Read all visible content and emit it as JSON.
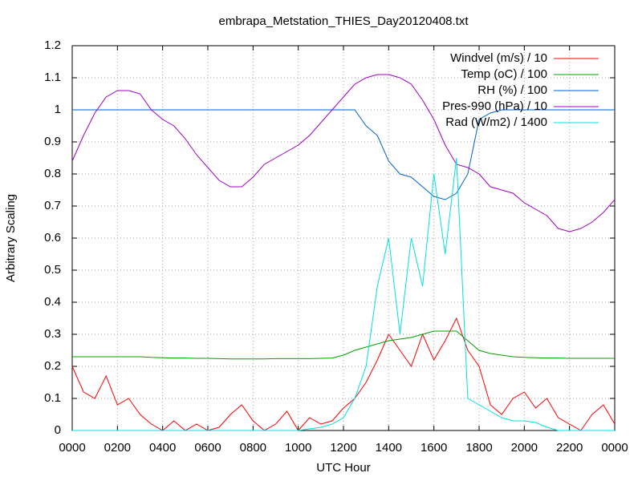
{
  "chart_data": {
    "type": "line",
    "title": "embrapa_Metstation_THIES_Day20120408.txt",
    "x_label": "UTC Hour",
    "y_label": "Arbitrary Scaling",
    "x": [
      0,
      0.5,
      1,
      1.5,
      2,
      2.5,
      3,
      3.5,
      4,
      4.5,
      5,
      5.5,
      6,
      6.5,
      7,
      7.5,
      8,
      8.5,
      9,
      9.5,
      10,
      10.5,
      11,
      11.5,
      12,
      12.5,
      13,
      13.5,
      14,
      14.5,
      15,
      15.5,
      16,
      16.5,
      17,
      17.5,
      18,
      18.5,
      19,
      19.5,
      20,
      20.5,
      21,
      21.5,
      22,
      22.5,
      23,
      23.5,
      24
    ],
    "series": [
      {
        "name": "Windvel (m/s) / 10",
        "color": "#ff0000",
        "values": [
          0.2,
          0.12,
          0.1,
          0.17,
          0.08,
          0.1,
          0.05,
          0.02,
          0,
          0.03,
          0,
          0.02,
          0,
          0.01,
          0.05,
          0.08,
          0.03,
          0,
          0.02,
          0.06,
          0,
          0.04,
          0.02,
          0.03,
          0.07,
          0.1,
          0.15,
          0.22,
          0.3,
          0.25,
          0.2,
          0.3,
          0.22,
          0.28,
          0.35,
          0.25,
          0.2,
          0.08,
          0.05,
          0.1,
          0.12,
          0.07,
          0.1,
          0.04,
          0.02,
          0,
          0.05,
          0.08,
          0.02
        ]
      },
      {
        "name": "Temp (oC) / 100",
        "color": "#00a000",
        "values": [
          0.23,
          0.23,
          0.23,
          0.23,
          0.23,
          0.23,
          0.23,
          0.228,
          0.227,
          0.226,
          0.226,
          0.225,
          0.225,
          0.224,
          0.223,
          0.223,
          0.223,
          0.223,
          0.224,
          0.224,
          0.224,
          0.224,
          0.225,
          0.226,
          0.235,
          0.25,
          0.26,
          0.27,
          0.28,
          0.285,
          0.29,
          0.3,
          0.31,
          0.31,
          0.31,
          0.28,
          0.25,
          0.24,
          0.235,
          0.23,
          0.228,
          0.227,
          0.226,
          0.226,
          0.225,
          0.225,
          0.225,
          0.225,
          0.225
        ]
      },
      {
        "name": "RH (%) / 100",
        "color": "#0060d0",
        "values": [
          1,
          1,
          1,
          1,
          1,
          1,
          1,
          1,
          1,
          1,
          1,
          1,
          1,
          1,
          1,
          1,
          1,
          1,
          1,
          1,
          1,
          1,
          1,
          1,
          1,
          1,
          0.95,
          0.92,
          0.84,
          0.8,
          0.79,
          0.76,
          0.73,
          0.72,
          0.74,
          0.8,
          0.97,
          0.99,
          1,
          1,
          1,
          1,
          1,
          1,
          1,
          1,
          1,
          1,
          1
        ]
      },
      {
        "name": "Pres-990 (hPa) / 10",
        "color": "#a000c0",
        "values": [
          0.84,
          0.92,
          0.99,
          1.04,
          1.06,
          1.06,
          1.05,
          1.0,
          0.97,
          0.95,
          0.91,
          0.86,
          0.82,
          0.78,
          0.76,
          0.76,
          0.79,
          0.83,
          0.85,
          0.87,
          0.89,
          0.92,
          0.96,
          1.0,
          1.04,
          1.08,
          1.1,
          1.11,
          1.11,
          1.1,
          1.08,
          1.03,
          0.97,
          0.89,
          0.83,
          0.82,
          0.8,
          0.76,
          0.75,
          0.74,
          0.71,
          0.69,
          0.67,
          0.63,
          0.62,
          0.63,
          0.65,
          0.68,
          0.72
        ]
      },
      {
        "name": "Rad (W/m2) / 1400",
        "color": "#00e0e0",
        "values": [
          0,
          0,
          0,
          0,
          0,
          0,
          0,
          0,
          0,
          0,
          0,
          0,
          0,
          0,
          0,
          0,
          0,
          0,
          0,
          0,
          0,
          0.005,
          0.01,
          0.02,
          0.04,
          0.1,
          0.2,
          0.45,
          0.6,
          0.3,
          0.6,
          0.45,
          0.8,
          0.55,
          0.85,
          0.1,
          0.08,
          0.06,
          0.04,
          0.03,
          0.03,
          0.025,
          0.01,
          0,
          0,
          0,
          0,
          0,
          0
        ]
      }
    ],
    "xlim": [
      0,
      24
    ],
    "xticks": [
      {
        "value": 0,
        "label": "0000"
      },
      {
        "value": 2,
        "label": "0200"
      },
      {
        "value": 4,
        "label": "0400"
      },
      {
        "value": 6,
        "label": "0600"
      },
      {
        "value": 8,
        "label": "0800"
      },
      {
        "value": 10,
        "label": "1000"
      },
      {
        "value": 12,
        "label": "1200"
      },
      {
        "value": 14,
        "label": "1400"
      },
      {
        "value": 16,
        "label": "1600"
      },
      {
        "value": 18,
        "label": "1800"
      },
      {
        "value": 20,
        "label": "2000"
      },
      {
        "value": 22,
        "label": "2200"
      },
      {
        "value": 24,
        "label": "0000"
      }
    ],
    "ylim": [
      0,
      1.2
    ],
    "yticks": [
      0,
      0.1,
      0.2,
      0.3,
      0.4,
      0.5,
      0.6,
      0.7,
      0.8,
      0.9,
      1,
      1.1,
      1.2
    ],
    "grid": true,
    "legend": "top-right"
  }
}
